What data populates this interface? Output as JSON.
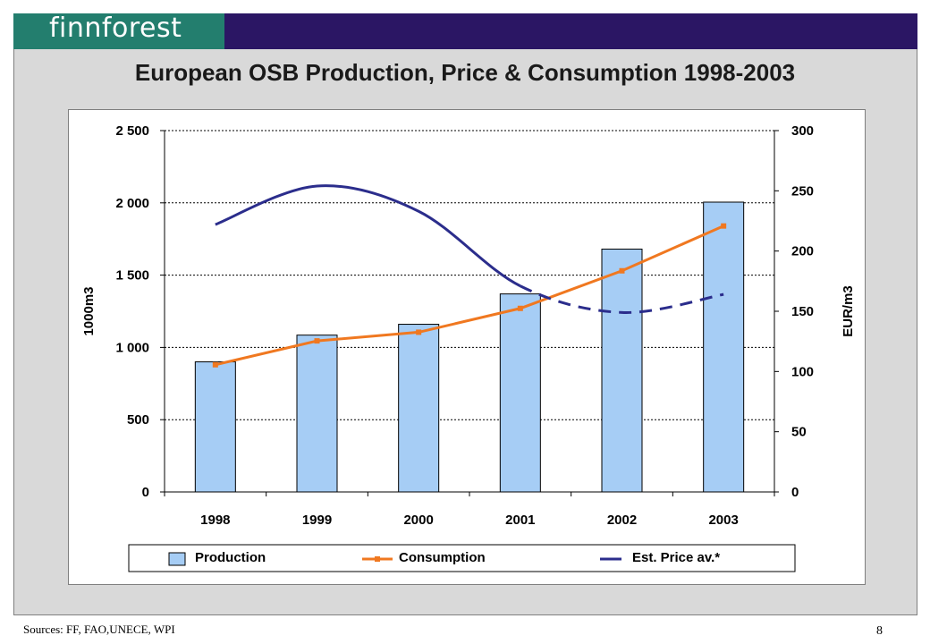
{
  "header": {
    "logo": "finnforest",
    "title": "European OSB Production, Price & Consumption 1998-2003"
  },
  "footer": {
    "source": "Sources: FF, FAO,UNECE, WPI",
    "page": "8"
  },
  "colors": {
    "header_bar": "#2b1664",
    "logo_block": "#237e6e",
    "production": "#a6cdf5",
    "consumption": "#f07820",
    "price": "#2b2d8c"
  },
  "chart_data": {
    "type": "bar",
    "categories": [
      "1998",
      "1999",
      "2000",
      "2001",
      "2002",
      "2003"
    ],
    "ylabel": "1000m3",
    "ylabel_right": "EUR/m3",
    "ylim": [
      0,
      2500
    ],
    "ylim_right": [
      0,
      300
    ],
    "yticks": [
      "0",
      "500",
      "1 000",
      "1 500",
      "2 000",
      "2 500"
    ],
    "yticks_right": [
      "0",
      "50",
      "100",
      "150",
      "200",
      "250",
      "300"
    ],
    "grid": true,
    "legend_position": "bottom",
    "series": [
      {
        "name": "Production",
        "type": "bar",
        "axis": "left",
        "values": [
          900,
          1085,
          1160,
          1370,
          1680,
          2005
        ]
      },
      {
        "name": "Consumption",
        "type": "line",
        "axis": "left",
        "values": [
          880,
          1045,
          1105,
          1270,
          1530,
          1840
        ]
      },
      {
        "name": "Est. Price av.*",
        "type": "line",
        "axis": "right",
        "values": [
          222,
          254,
          233,
          171,
          149,
          164
        ]
      }
    ]
  }
}
